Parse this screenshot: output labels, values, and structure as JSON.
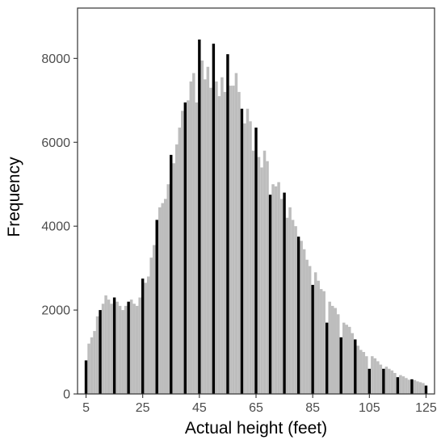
{
  "chart_data": {
    "type": "bar",
    "title": "",
    "xlabel": "Actual height (feet)",
    "ylabel": "Frequency",
    "xlim": [
      2,
      128
    ],
    "ylim": [
      0,
      9200
    ],
    "x_ticks": [
      "5",
      "25",
      "45",
      "65",
      "85",
      "105",
      "125"
    ],
    "y_ticks": [
      "0",
      "2000",
      "4000",
      "6000",
      "8000"
    ],
    "grid": false,
    "legend": "none",
    "colors": {
      "rounded": "#000000",
      "other": "#bdbdbd",
      "frame": "#333333"
    },
    "series": [
      {
        "name": "",
        "color": "#000000",
        "x": [
          5,
          10,
          15,
          20,
          25,
          30,
          35,
          40,
          45,
          50,
          55,
          60,
          65,
          70,
          75,
          80,
          85,
          90,
          95,
          100,
          105,
          110,
          115,
          120,
          125
        ],
        "y": [
          800,
          2000,
          2300,
          2200,
          2750,
          4150,
          5700,
          6950,
          8450,
          8350,
          8100,
          6800,
          6350,
          4750,
          4800,
          3750,
          2600,
          1700,
          1350,
          1300,
          600,
          600,
          400,
          350,
          200
        ]
      },
      {
        "name": "",
        "color": "#bdbdbd",
        "x": [
          6,
          7,
          8,
          9,
          11,
          12,
          13,
          14,
          16,
          17,
          18,
          19,
          21,
          22,
          23,
          24,
          26,
          27,
          28,
          29,
          31,
          32,
          33,
          34,
          36,
          37,
          38,
          39,
          41,
          42,
          43,
          44,
          46,
          47,
          48,
          49,
          51,
          52,
          53,
          54,
          56,
          57,
          58,
          59,
          61,
          62,
          63,
          64,
          66,
          67,
          68,
          69,
          71,
          72,
          73,
          74,
          76,
          77,
          78,
          79,
          81,
          82,
          83,
          84,
          86,
          87,
          88,
          89,
          91,
          92,
          93,
          94,
          96,
          97,
          98,
          99,
          101,
          102,
          103,
          104,
          106,
          107,
          108,
          109,
          111,
          112,
          113,
          114,
          116,
          117,
          118,
          119,
          121,
          122,
          123,
          124
        ],
        "y": [
          1200,
          1350,
          1500,
          1850,
          2150,
          2350,
          2250,
          2150,
          2200,
          2100,
          2000,
          2100,
          2250,
          2150,
          2100,
          2300,
          2650,
          2800,
          3250,
          3550,
          4450,
          4550,
          4650,
          5000,
          5500,
          5950,
          6350,
          6750,
          7000,
          7450,
          7650,
          6950,
          7950,
          7500,
          7800,
          7300,
          7450,
          7100,
          7550,
          7200,
          7350,
          7350,
          7650,
          7200,
          6450,
          6800,
          6500,
          5800,
          5650,
          5400,
          5800,
          5550,
          5000,
          4950,
          5050,
          4650,
          4200,
          4450,
          4150,
          4000,
          3650,
          3450,
          3200,
          3050,
          2900,
          2700,
          2500,
          2450,
          2200,
          2100,
          2050,
          1900,
          1700,
          1650,
          1600,
          1450,
          1150,
          1050,
          1000,
          900,
          900,
          850,
          780,
          700,
          650,
          600,
          560,
          500,
          450,
          420,
          380,
          340,
          330,
          300,
          280,
          260
        ]
      }
    ]
  }
}
